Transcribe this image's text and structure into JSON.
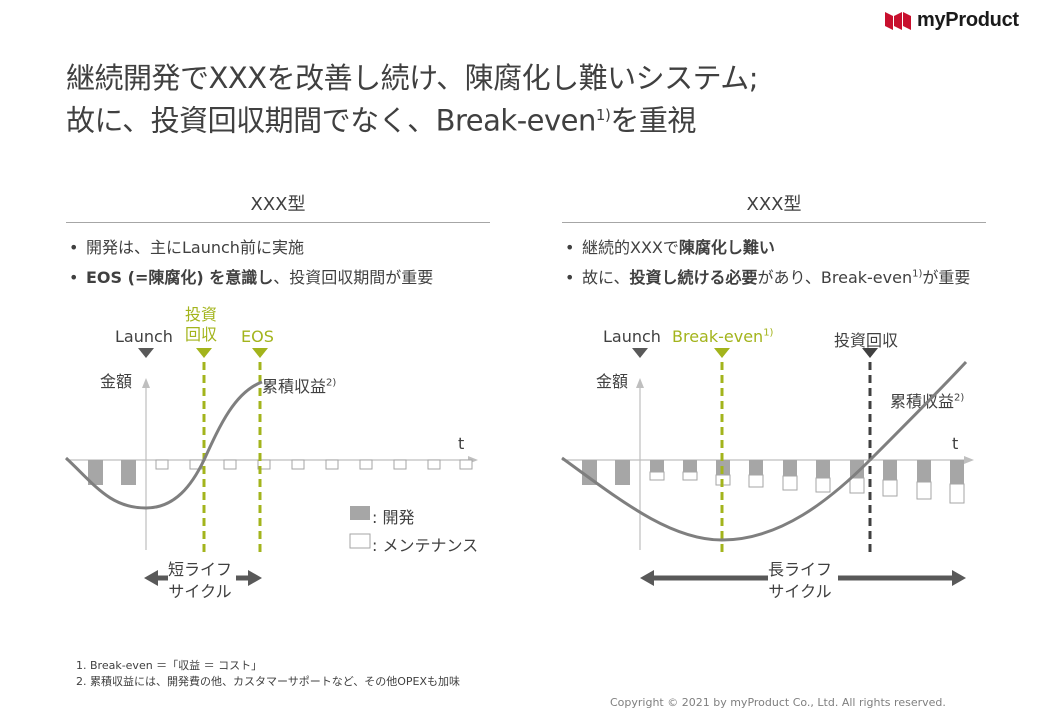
{
  "brand": {
    "name": "myProduct",
    "mark_color": "#c8102e"
  },
  "title": {
    "line1": "継続開発でXXXを改善し続け、陳腐化し難いシステム;",
    "line2_pre": "故に、投資回収期間でなく、Break-even",
    "line2_sup": "1)",
    "line2_post": "を重視"
  },
  "left_panel": {
    "heading": "XXX型",
    "bullets": [
      {
        "text": "開発は、主にLaunch前に実施"
      },
      {
        "bold": "EOS (=陳腐化) を意識し",
        "text": "、投資回収期間が重要"
      }
    ],
    "markers": {
      "launch": "Launch",
      "payback": "投資\n回収",
      "eos": "EOS"
    },
    "y_label": "金額",
    "t_label": "t",
    "curve_label": "累積収益",
    "curve_sup": "2)",
    "legend": {
      "dev": ": 開発",
      "maint": ": メンテナンス"
    },
    "lifecycle": "短ライフ\nサイクル"
  },
  "right_panel": {
    "heading": "XXX型",
    "bullets": [
      {
        "text": "継続的XXXで",
        "bold": "陳腐化し難い"
      },
      {
        "text": "故に、",
        "bold": "投資し続ける必要",
        "text2": "があり、Break-even",
        "sup": "1)",
        "text3": "が重要"
      }
    ],
    "markers": {
      "launch": "Launch",
      "breakeven": "Break-even",
      "breakeven_sup": "1)",
      "payback": "投資回収"
    },
    "y_label": "金額",
    "t_label": "t",
    "curve_label": "累積収益",
    "curve_sup": "2)",
    "lifecycle": "長ライフ\nサイクル"
  },
  "footnotes": [
    "1. Break-even ＝「収益 ＝ コスト」",
    "2. 累積収益には、開発費の他、カスタマーサポートなど、その他OPEXも加味"
  ],
  "copyright": "Copyright © 2021 by myProduct Co., Ltd.  All rights reserved.",
  "colors": {
    "accent_green": "#a3b41c",
    "bar_gray": "#a6a6a6",
    "curve_gray": "#7f7f7f",
    "dark_marker": "#595959"
  }
}
